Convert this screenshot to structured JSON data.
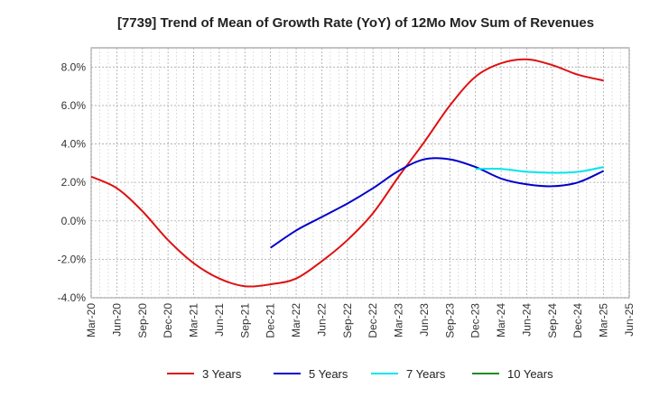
{
  "chart_data": {
    "type": "line",
    "title": "[7739]  Trend of Mean of Growth Rate (YoY) of 12Mo Mov Sum of Revenues",
    "xlabel": "",
    "ylabel": "",
    "ylim": [
      -4.0,
      9.0
    ],
    "y_ticks": [
      -4.0,
      -2.0,
      0.0,
      2.0,
      4.0,
      6.0,
      8.0
    ],
    "y_tick_labels": [
      "-4.0%",
      "-2.0%",
      "0.0%",
      "2.0%",
      "4.0%",
      "6.0%",
      "8.0%"
    ],
    "categories": [
      "Mar-20",
      "Jun-20",
      "Sep-20",
      "Dec-20",
      "Mar-21",
      "Jun-21",
      "Sep-21",
      "Dec-21",
      "Mar-22",
      "Jun-22",
      "Sep-22",
      "Dec-22",
      "Mar-23",
      "Jun-23",
      "Sep-23",
      "Dec-23",
      "Mar-24",
      "Jun-24",
      "Sep-24",
      "Dec-24",
      "Mar-25",
      "Jun-25"
    ],
    "grid": true,
    "legend_position": "bottom",
    "series": [
      {
        "name": "3 Years",
        "color": "#dd1111",
        "values": [
          2.3,
          1.7,
          0.5,
          -1.0,
          -2.2,
          -3.0,
          -3.4,
          -3.3,
          -3.0,
          -2.1,
          -1.0,
          0.4,
          2.3,
          4.1,
          6.0,
          7.5,
          8.2,
          8.4,
          8.1,
          7.6,
          7.3,
          null
        ]
      },
      {
        "name": "5 Years",
        "color": "#0000cc",
        "values": [
          null,
          null,
          null,
          null,
          null,
          null,
          null,
          -1.4,
          -0.5,
          0.2,
          0.9,
          1.7,
          2.6,
          3.2,
          3.2,
          2.8,
          2.2,
          1.9,
          1.8,
          2.0,
          2.6,
          null
        ]
      },
      {
        "name": "7 Years",
        "color": "#00e5ee",
        "values": [
          null,
          null,
          null,
          null,
          null,
          null,
          null,
          null,
          null,
          null,
          null,
          null,
          null,
          null,
          null,
          2.7,
          2.7,
          2.55,
          2.5,
          2.55,
          2.8,
          null
        ]
      },
      {
        "name": "10 Years",
        "color": "#228b22",
        "values": [
          null,
          null,
          null,
          null,
          null,
          null,
          null,
          null,
          null,
          null,
          null,
          null,
          null,
          null,
          null,
          null,
          null,
          null,
          null,
          null,
          null,
          null
        ]
      }
    ]
  }
}
